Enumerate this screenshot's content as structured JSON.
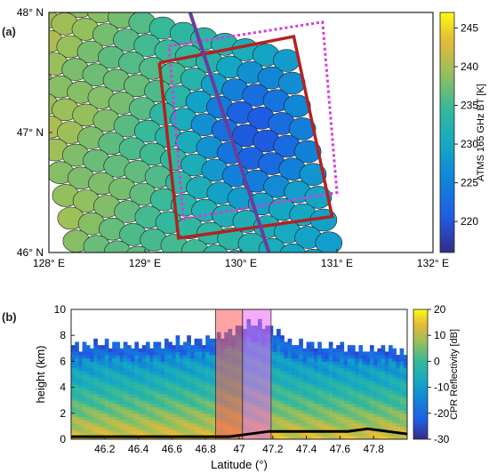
{
  "panel_a": {
    "letter": "(a)",
    "colorbar_label": "ATMS 165 GHz BT [K]",
    "colorbar_ticks": [
      "220",
      "225",
      "230",
      "235",
      "240",
      "245"
    ],
    "colorbar_range": [
      216,
      247
    ],
    "colors": {
      "footprint_outline": "#222222",
      "track_line": "#6a3d9a",
      "box_red": "#b22222",
      "box_magenta": "#d33cdc"
    }
  },
  "panel_b": {
    "letter": "(b)",
    "colorbar_label": "CPR Reflectivity [dB]",
    "colorbar_ticks": [
      "20",
      "10",
      "0",
      "-10",
      "-20",
      "-30"
    ],
    "colorbar_range": [
      -30,
      20
    ],
    "xlabel": "Latitude (°)",
    "ylabel": "height (km)",
    "colors": {
      "highlight_red": "#ff5a5a",
      "highlight_magenta": "#ee66ee",
      "surface_line": "#000000"
    }
  },
  "chart_data": [
    {
      "type": "heatmap",
      "description_source": "ATMS footprints map",
      "xlabel": "",
      "ylabel": "",
      "x_ticks": [
        "128° E",
        "129° E",
        "130° E",
        "131° E",
        "132° E"
      ],
      "y_ticks": [
        "48° N",
        "47° N",
        "46° N"
      ],
      "xlim": [
        128,
        132
      ],
      "ylim": [
        46,
        48
      ],
      "footprint_grid": {
        "rows": 11,
        "cols": 11,
        "lon_origin": 127.95,
        "lat_origin": 47.95,
        "step_along_lon": [
          0.215,
          -0.045
        ],
        "step_across_lat": [
          0.055,
          -0.19
        ],
        "center_bt": 234
      },
      "track": {
        "lon": [
          129.45,
          130.3
        ],
        "lat": [
          48.05,
          45.98
        ]
      },
      "red_box": {
        "lon": [
          129.15,
          130.55,
          130.95,
          129.35,
          129.15
        ],
        "lat": [
          47.58,
          47.8,
          46.3,
          46.12,
          47.58
        ]
      },
      "magenta_box": {
        "lon": [
          129.25,
          130.85,
          131.0,
          129.4,
          129.25
        ],
        "lat": [
          47.72,
          47.92,
          46.5,
          46.28,
          47.72
        ]
      }
    },
    {
      "type": "heatmap",
      "description_source": "CloudSat CPR cross-section",
      "xlabel": "Latitude (°)",
      "ylabel": "height (km)",
      "x_ticks": [
        "46.2",
        "46.4",
        "46.6",
        "46.8",
        "47",
        "47.2",
        "47.4",
        "47.6",
        "47.8"
      ],
      "y_ticks": [
        "0",
        "2",
        "4",
        "6",
        "8",
        "10"
      ],
      "xlim": [
        46.0,
        48.0
      ],
      "ylim": [
        0,
        10
      ],
      "highlights": [
        {
          "lat_range": [
            46.86,
            47.02
          ],
          "color": "red"
        },
        {
          "lat_range": [
            47.02,
            47.19
          ],
          "color": "magenta"
        }
      ],
      "cloud_top_km": [
        7.0,
        7.2,
        7.3,
        7.1,
        7.2,
        7.4,
        7.5,
        7.6,
        8.2,
        8.8,
        8.6,
        7.4,
        7.2,
        7.0,
        7.1,
        6.8,
        6.9,
        6.6
      ],
      "surface_line_km": [
        0.2,
        0.2,
        0.2,
        0.2,
        0.2,
        0.2,
        0.2,
        0.2,
        0.2,
        0.4,
        0.6,
        0.6,
        0.6,
        0.6,
        0.6,
        0.8,
        0.6,
        0.4
      ]
    }
  ]
}
